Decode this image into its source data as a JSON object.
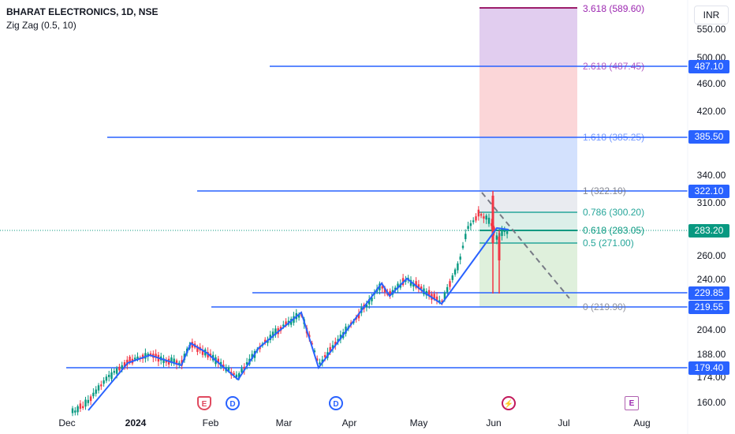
{
  "header": {
    "title": "BHARAT ELECTRONICS, 1D, NSE",
    "indicator": "Zig Zag (0.5, 10)"
  },
  "currency": "INR",
  "price_scale": [
    "550.00",
    "500.00",
    "460.00",
    "420.00",
    "340.00",
    "310.00",
    "260.00",
    "240.00",
    "204.00",
    "188.00",
    "174.00",
    "160.00"
  ],
  "price_tags": {
    "t487": "487.10",
    "t385": "385.50",
    "t322": "322.10",
    "t283": "283.20",
    "t229": "229.85",
    "t219": "219.55",
    "t179": "179.40"
  },
  "time_axis": [
    "Dec",
    "2024",
    "Feb",
    "Mar",
    "Apr",
    "May",
    "Jun",
    "Jul",
    "Aug"
  ],
  "fib_levels": {
    "l3618": "3.618 (589.60)",
    "l2618": "2.618 (487.45)",
    "l1618": "1.618 (385.25)",
    "l1": "1 (322.10)",
    "l0786": "0.786 (300.20)",
    "l0618": "0.618 (283.05)",
    "l05": "0.5 (271.00)",
    "l0": "0 (219.90)"
  },
  "events": {
    "e1": "E",
    "d1": "D",
    "d2": "D",
    "s1": "⚡",
    "e2": "E"
  },
  "colors": {
    "line_blue": "#2962ff",
    "up": "#089981",
    "down": "#f23645",
    "fib_purple": "#9c27b0",
    "fib_teal": "#26a69a"
  }
}
